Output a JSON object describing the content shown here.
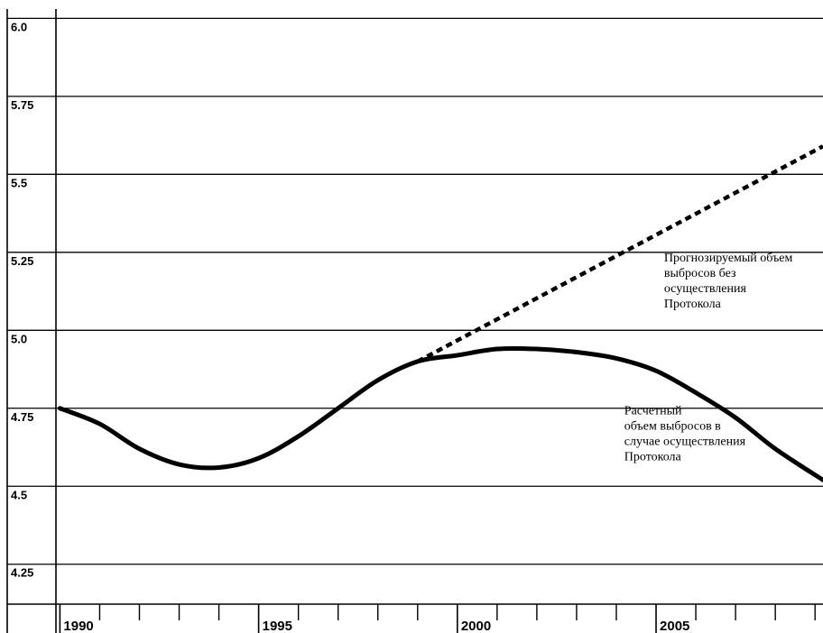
{
  "chart_data": {
    "type": "line",
    "title": "",
    "xlabel": "",
    "ylabel": "",
    "xlim": [
      1989.9,
      2009.2
    ],
    "ylim": [
      4.07,
      6.03
    ],
    "grid": true,
    "yticks": [
      {
        "value": 6.0,
        "label": "6.0"
      },
      {
        "value": 5.75,
        "label": "5.75"
      },
      {
        "value": 5.5,
        "label": "5.5"
      },
      {
        "value": 5.25,
        "label": "5.25"
      },
      {
        "value": 5.0,
        "label": "5.0"
      },
      {
        "value": 4.75,
        "label": "4.75"
      },
      {
        "value": 4.5,
        "label": "4.5"
      },
      {
        "value": 4.25,
        "label": "4.25"
      }
    ],
    "xticks_major": [
      {
        "value": 1990,
        "label": "1990"
      },
      {
        "value": 1995,
        "label": "1995"
      },
      {
        "value": 2000,
        "label": "2000"
      },
      {
        "value": 2005,
        "label": "2005"
      }
    ],
    "xticks_minor": [
      1991,
      1992,
      1993,
      1994,
      1996,
      1997,
      1998,
      1999,
      2001,
      2002,
      2003,
      2004,
      2006,
      2007,
      2008,
      2009
    ],
    "series": [
      {
        "style": "solid",
        "x": [
          1990,
          1991,
          1992,
          1993,
          1994,
          1995,
          1996,
          1997,
          1998,
          1999,
          2000,
          2001,
          2002,
          2003,
          2004,
          2005,
          2006,
          2007,
          2008,
          2009.2
        ],
        "y": [
          4.75,
          4.7,
          4.62,
          4.57,
          4.56,
          4.59,
          4.66,
          4.75,
          4.84,
          4.9,
          4.92,
          4.94,
          4.94,
          4.93,
          4.91,
          4.87,
          4.8,
          4.72,
          4.62,
          4.52
        ]
      },
      {
        "style": "dashed",
        "x": [
          1999,
          2009.2
        ],
        "y": [
          4.9,
          5.59
        ]
      }
    ],
    "annotations": [
      {
        "id": "forecast",
        "lines": [
          "Прогнозируемый объем",
          "выбросов без",
          "осуществления",
          "Протокола"
        ],
        "x": 2005.2,
        "y": 5.22
      },
      {
        "id": "estimated",
        "lines": [
          "Расчетный",
          "объем выбросов в",
          "случае осуществления",
          "Протокола"
        ],
        "x": 2004.2,
        "y": 4.73
      }
    ]
  }
}
